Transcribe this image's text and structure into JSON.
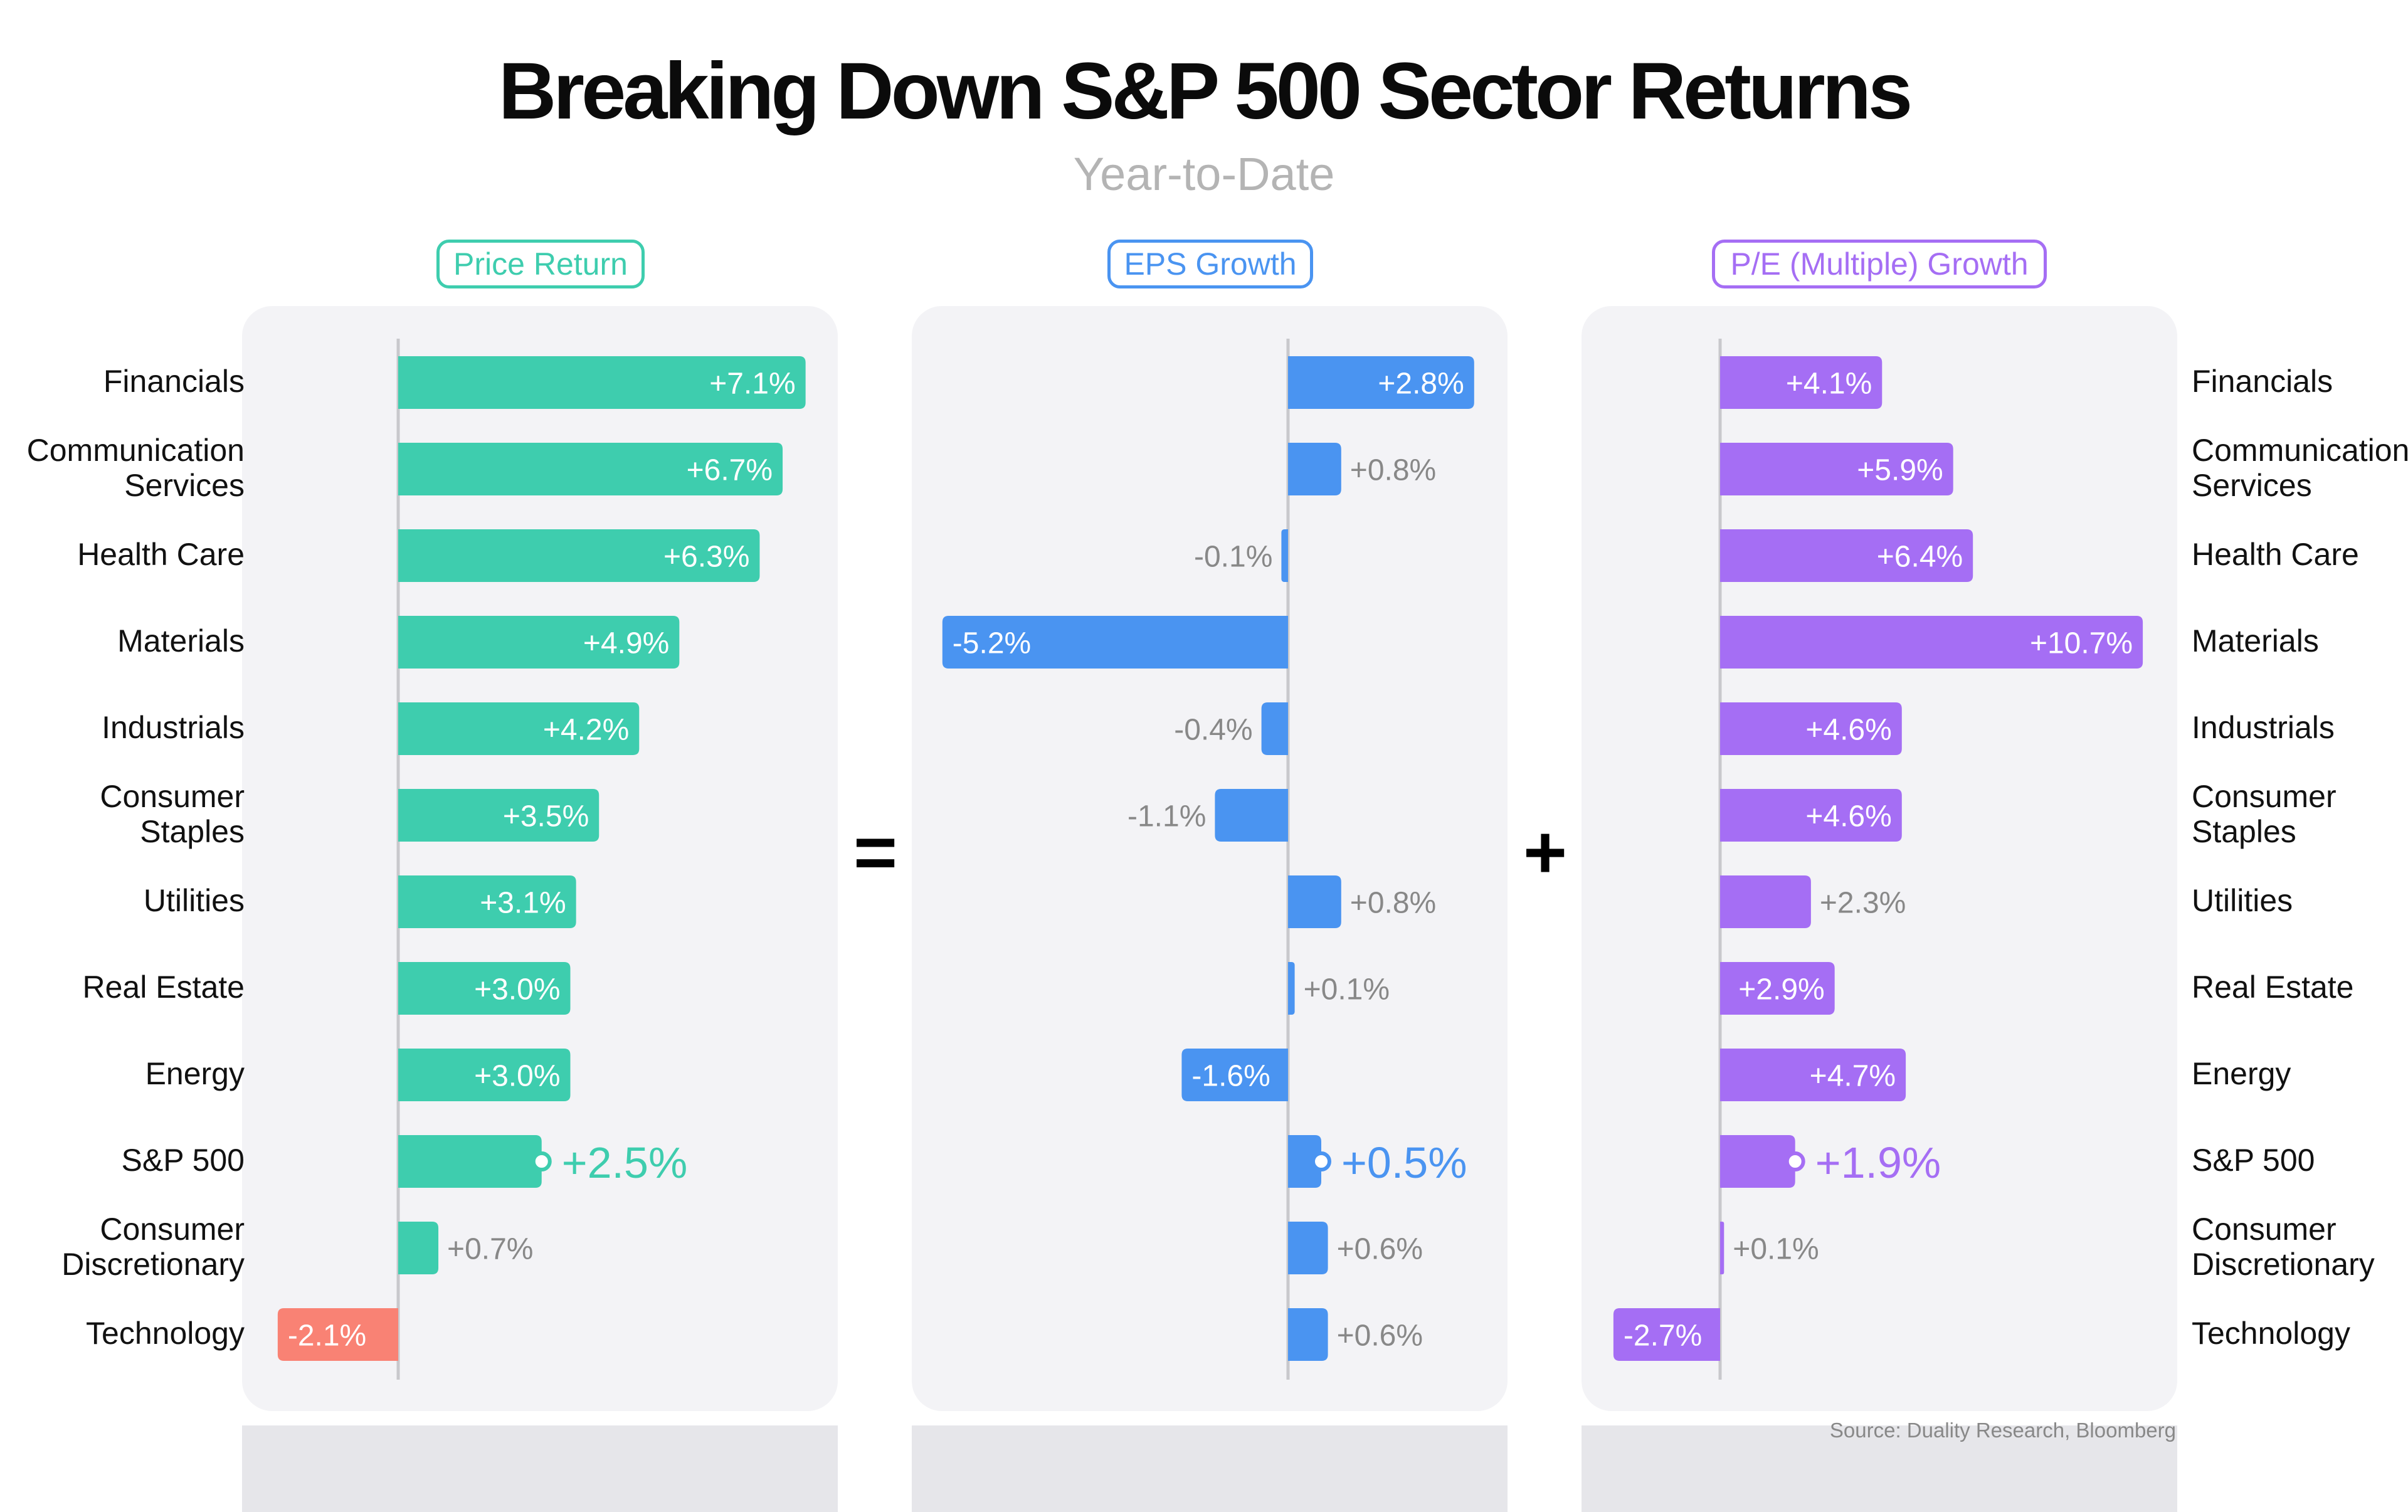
{
  "title": "Breaking Down S&P 500 Sector Returns",
  "subtitle": "Year-to-Date",
  "source": "Source: Duality Research, Bloomberg",
  "operators": {
    "equals": "=",
    "plus": "+"
  },
  "colors": {
    "price": "#3ecdae",
    "price_negative": "#f98274",
    "eps": "#4a94f1",
    "pe": "#a56ef4",
    "label_outside": "#888888",
    "label_inside": "#ffffff"
  },
  "chart_data": {
    "type": "bar",
    "orientation": "horizontal",
    "categories": [
      [
        "Financials"
      ],
      [
        "Communication",
        "Services"
      ],
      [
        "Health Care"
      ],
      [
        "Materials"
      ],
      [
        "Industrials"
      ],
      [
        "Consumer",
        "Staples"
      ],
      [
        "Utilities"
      ],
      [
        "Real Estate"
      ],
      [
        "Energy"
      ],
      [
        "S&P 500"
      ],
      [
        "Consumer",
        "Discretionary"
      ],
      [
        "Technology"
      ]
    ],
    "highlight_category": "S&P 500",
    "series": [
      {
        "name": "Price Return",
        "values": [
          7.1,
          6.7,
          6.3,
          4.9,
          4.2,
          3.5,
          3.1,
          3.0,
          3.0,
          2.5,
          0.7,
          -2.1
        ],
        "labels": [
          "+7.1%",
          "+6.7%",
          "+6.3%",
          "+4.9%",
          "+4.2%",
          "+3.5%",
          "+3.1%",
          "+3.0%",
          "+3.0%",
          "+2.5%",
          "+0.7%",
          "-2.1%"
        ]
      },
      {
        "name": "EPS Growth",
        "values": [
          2.8,
          0.8,
          -0.1,
          -5.2,
          -0.4,
          -1.1,
          0.8,
          0.1,
          -1.6,
          0.5,
          0.6,
          0.6
        ],
        "labels": [
          "+2.8%",
          "+0.8%",
          "-0.1%",
          "-5.2%",
          "-0.4%",
          "-1.1%",
          "+0.8%",
          "+0.1%",
          "-1.6%",
          "+0.5%",
          "+0.6%",
          "+0.6%"
        ]
      },
      {
        "name": "P/E (Multiple) Growth",
        "values": [
          4.1,
          5.9,
          6.4,
          10.7,
          4.6,
          4.6,
          2.3,
          2.9,
          4.7,
          1.9,
          0.1,
          -2.7
        ],
        "labels": [
          "+4.1%",
          "+5.9%",
          "+6.4%",
          "+10.7%",
          "+4.6%",
          "+4.6%",
          "+2.3%",
          "+2.9%",
          "+4.7%",
          "+1.9%",
          "+0.1%",
          "-2.7%"
        ]
      }
    ]
  }
}
